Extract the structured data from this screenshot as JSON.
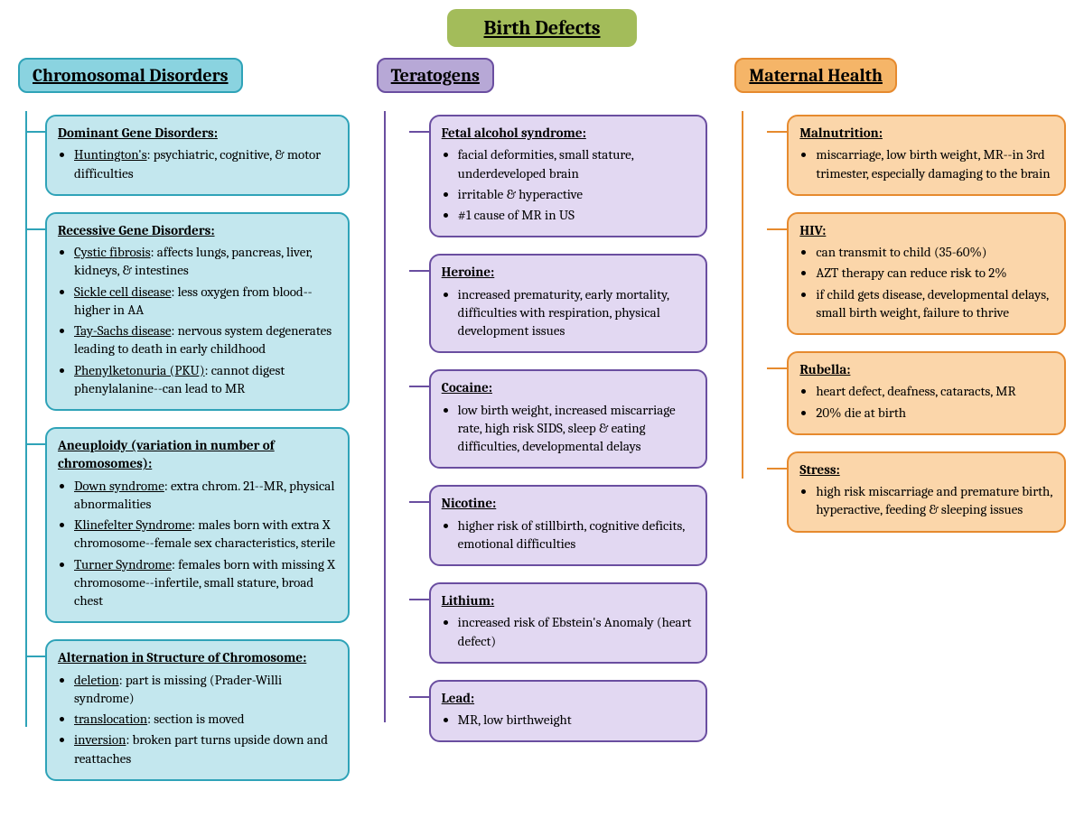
{
  "title": "Birth Defects",
  "columns": [
    {
      "id": "chromosomal",
      "label": "Chromosomal Disorders",
      "color": "#2fa3b8",
      "bg": "#c3e7ee",
      "header_bg": "#8ad3e0",
      "indent": false,
      "tree_bottom": "60px",
      "nodes": [
        {
          "title": "Dominant Gene Disorders:",
          "items": [
            {
              "term": "Huntington's",
              "desc": ": psychiatric, cognitive, & motor difficulties"
            }
          ]
        },
        {
          "title": "Recessive Gene Disorders:",
          "items": [
            {
              "term": "Cystic fibrosis",
              "desc": ": affects lungs, pancreas, liver, kidneys, & intestines"
            },
            {
              "term": "Sickle cell disease",
              "desc": ": less oxygen from blood--higher in AA"
            },
            {
              "term": "Tay-Sachs disease",
              "desc": ": nervous system degenerates leading to death in early childhood"
            },
            {
              "term": "Phenylketonuria (PKU)",
              "desc": ": cannot digest phenylalanine--can lead to MR"
            }
          ]
        },
        {
          "title": "Aneuploidy (variation in number of chromosomes):",
          "items": [
            {
              "term": "Down syndrome",
              "desc": ": extra chrom. 21--MR, physical abnormalities"
            },
            {
              "term": "Klinefelter Syndrome",
              "desc": ": males born with extra X chromosome--female sex characteristics, sterile"
            },
            {
              "term": "Turner Syndrome",
              "desc": ": females born with missing X chromosome--infertile, small stature, broad chest"
            }
          ]
        },
        {
          "title": "Alternation in Structure of Chromosome:",
          "items": [
            {
              "term": "deletion",
              "desc": ": part is missing (Prader-Willi syndrome)"
            },
            {
              "term": "translocation",
              "desc": ": section is moved"
            },
            {
              "term": "inversion",
              "desc": ": broken part turns upside down and reattaches"
            }
          ]
        }
      ]
    },
    {
      "id": "teratogens",
      "label": "Teratogens",
      "color": "#6a4ea0",
      "bg": "#e2d8f2",
      "header_bg": "#b7a8d6",
      "indent": true,
      "tree_bottom": "22px",
      "nodes": [
        {
          "title": "Fetal alcohol syndrome:",
          "items": [
            {
              "term": "",
              "desc": "facial deformities, small stature, underdeveloped brain"
            },
            {
              "term": "",
              "desc": "irritable & hyperactive"
            },
            {
              "term": "",
              "desc": "#1 cause of MR in US"
            }
          ]
        },
        {
          "title": "Heroine:",
          "items": [
            {
              "term": "",
              "desc": "increased prematurity, early mortality, difficulties with respiration, physical development issues"
            }
          ]
        },
        {
          "title": "Cocaine:",
          "items": [
            {
              "term": "",
              "desc": "low birth weight, increased miscarriage rate, high risk SIDS, sleep & eating difficulties, developmental delays"
            }
          ]
        },
        {
          "title": "Nicotine:",
          "items": [
            {
              "term": "",
              "desc": "higher risk of stillbirth, cognitive deficits, emotional difficulties"
            }
          ]
        },
        {
          "title": "Lithium:",
          "items": [
            {
              "term": "",
              "desc": "increased risk of Ebstein's Anomaly (heart defect)"
            }
          ]
        },
        {
          "title": "Lead:",
          "items": [
            {
              "term": "",
              "desc": "MR, low birthweight"
            }
          ]
        }
      ]
    },
    {
      "id": "maternal",
      "label": "Maternal Health",
      "color": "#e68a2e",
      "bg": "#fbd6aa",
      "header_bg": "#f5b568",
      "indent": true,
      "tree_bottom": "60px",
      "nodes": [
        {
          "title": "Malnutrition:",
          "items": [
            {
              "term": "",
              "desc": "miscarriage, low birth weight, MR--in 3rd trimester, especially damaging to the brain"
            }
          ]
        },
        {
          "title": "HIV:",
          "items": [
            {
              "term": "",
              "desc": "can transmit to child (35-60%)"
            },
            {
              "term": "",
              "desc": "AZT therapy can reduce risk to 2%"
            },
            {
              "term": "",
              "desc": "if child gets disease, developmental delays, small birth weight, failure to thrive"
            }
          ]
        },
        {
          "title": "Rubella:",
          "items": [
            {
              "term": "",
              "desc": "heart defect, deafness, cataracts, MR"
            },
            {
              "term": "",
              "desc": "20% die at birth"
            }
          ]
        },
        {
          "title": "Stress:",
          "items": [
            {
              "term": "",
              "desc": "high risk miscarriage and premature birth, hyperactive, feeding & sleeping issues"
            }
          ]
        }
      ]
    }
  ]
}
